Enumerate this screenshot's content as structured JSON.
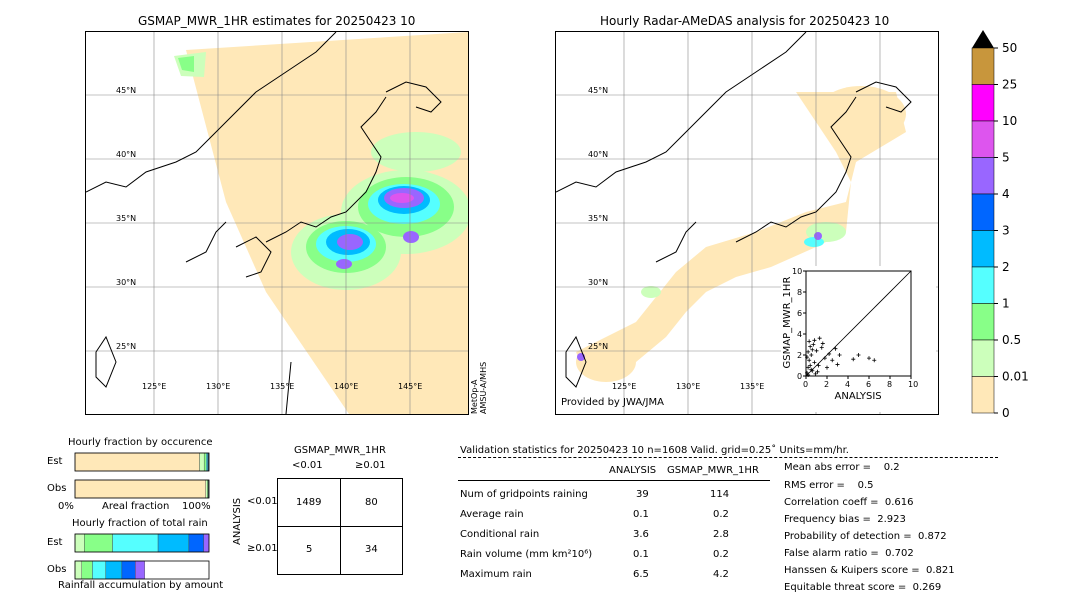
{
  "left_map": {
    "title": "GSMAP_MWR_1HR estimates for 20250423 10",
    "lat_labels": [
      "45°N",
      "40°N",
      "35°N",
      "30°N",
      "25°N"
    ],
    "lon_labels": [
      "125°E",
      "130°E",
      "135°E",
      "140°E",
      "145°E"
    ],
    "sensor_note": "MetOp-A\nAMSU-A/MHS"
  },
  "right_map": {
    "title": "Hourly Radar-AMeDAS analysis for 20250423 10",
    "lat_labels": [
      "45°N",
      "40°N",
      "35°N",
      "30°N",
      "25°N"
    ],
    "lon_labels": [
      "125°E",
      "130°E",
      "135°E"
    ],
    "credit": "Provided by JWA/JMA"
  },
  "colorbar": {
    "labels": [
      "50",
      "25",
      "10",
      "5",
      "4",
      "3",
      "2",
      "1",
      "0.5",
      "0.01",
      "0"
    ],
    "colors": [
      "#c8963c",
      "#ff00ff",
      "#dd55ee",
      "#9966ff",
      "#0066ff",
      "#00bbff",
      "#55ffff",
      "#88ff88",
      "#ccffbb",
      "#ffe8b8"
    ]
  },
  "scatter": {
    "xlabel": "ANALYSIS",
    "ylabel": "GSMAP_MWR_1HR",
    "ticks": [
      "0",
      "2",
      "4",
      "6",
      "8",
      "10"
    ]
  },
  "occurrence": {
    "title": "Hourly fraction by occurence",
    "row_labels": [
      "Est",
      "Obs"
    ],
    "axis_left": "0%",
    "axis_mid": "Areal fraction",
    "axis_right": "100%"
  },
  "total_rain": {
    "title": "Hourly fraction of total rain",
    "row_labels": [
      "Est",
      "Obs"
    ],
    "footer": "Rainfall accumulation by amount"
  },
  "contingency": {
    "title": "GSMAP_MWR_1HR",
    "col_labels": [
      "<0.01",
      "≥0.01"
    ],
    "side_label": "ANALYSIS",
    "row_labels": [
      "<0.01",
      "≥0.01"
    ],
    "cells": [
      "1489",
      "80",
      "5",
      "34"
    ]
  },
  "validation": {
    "header": "Validation statistics for 20250423 10  n=1608 Valid. grid=0.25˚ Units=mm/hr.",
    "col_headers": [
      "ANALYSIS",
      "GSMAP_MWR_1HR"
    ],
    "rows": [
      {
        "label": "Num of gridpoints raining",
        "a": "39",
        "b": "114"
      },
      {
        "label": "Average rain",
        "a": "0.1",
        "b": "0.2"
      },
      {
        "label": "Conditional rain",
        "a": "3.6",
        "b": "2.8"
      },
      {
        "label": "Rain volume (mm km²10⁶)",
        "a": "0.1",
        "b": "0.2"
      },
      {
        "label": "Maximum rain",
        "a": "6.5",
        "b": "4.2"
      }
    ],
    "scores": [
      "Mean abs error =    0.2",
      "RMS error =    0.5",
      "Correlation coeff =  0.616",
      "Frequency bias =  2.923",
      "Probability of detection =  0.872",
      "False alarm ratio =  0.702",
      "Hanssen & Kuipers score =  0.821",
      "Equitable threat score =  0.269"
    ]
  },
  "chart_data": [
    {
      "type": "scatter",
      "title": "",
      "xlabel": "ANALYSIS",
      "ylabel": "GSMAP_MWR_1HR",
      "xlim": [
        0,
        10
      ],
      "ylim": [
        0,
        10
      ],
      "points": [
        [
          0.1,
          0.3
        ],
        [
          0.2,
          0.8
        ],
        [
          0.3,
          1.5
        ],
        [
          0.5,
          2.0
        ],
        [
          0.4,
          1.0
        ],
        [
          0.6,
          0.5
        ],
        [
          0.8,
          1.3
        ],
        [
          1.0,
          2.4
        ],
        [
          1.2,
          1.0
        ],
        [
          0.7,
          3.0
        ],
        [
          1.5,
          2.7
        ],
        [
          1.8,
          1.7
        ],
        [
          2.0,
          0.8
        ],
        [
          2.5,
          1.5
        ],
        [
          3.0,
          1.1
        ],
        [
          3.2,
          2.0
        ],
        [
          2.8,
          2.6
        ],
        [
          4.5,
          1.6
        ],
        [
          5.0,
          2.0
        ],
        [
          6.0,
          1.7
        ],
        [
          6.5,
          1.5
        ],
        [
          0.2,
          2.3
        ],
        [
          0.3,
          3.3
        ],
        [
          0.1,
          1.8
        ],
        [
          0.4,
          2.8
        ],
        [
          1.3,
          3.6
        ],
        [
          0.9,
          0.2
        ],
        [
          0.2,
          0.1
        ],
        [
          0.5,
          0.6
        ],
        [
          1.1,
          0.4
        ],
        [
          1.6,
          3.1
        ],
        [
          2.2,
          2.1
        ],
        [
          0.6,
          2.5
        ],
        [
          0.8,
          3.4
        ]
      ]
    },
    {
      "type": "bar",
      "title": "Hourly fraction by occurence",
      "categories": [
        "Est",
        "Obs"
      ],
      "series": [
        {
          "values": [
            0.929,
            0.976
          ]
        },
        {
          "values": [
            0.035,
            0.012
          ]
        },
        {
          "values": [
            0.015,
            0.006
          ]
        },
        {
          "values": [
            0.01,
            0.004
          ]
        },
        {
          "values": [
            0.006,
            0.002
          ]
        },
        {
          "values": [
            0.005,
            0.0
          ]
        }
      ]
    },
    {
      "type": "bar",
      "title": "Hourly fraction of total rain",
      "categories": [
        "Est",
        "Obs"
      ],
      "series": [
        {
          "values": [
            0.07,
            0.05
          ]
        },
        {
          "values": [
            0.21,
            0.08
          ]
        },
        {
          "values": [
            0.34,
            0.1
          ]
        },
        {
          "values": [
            0.23,
            0.12
          ]
        },
        {
          "values": [
            0.11,
            0.1
          ]
        },
        {
          "values": [
            0.04,
            0.07
          ]
        }
      ]
    }
  ]
}
